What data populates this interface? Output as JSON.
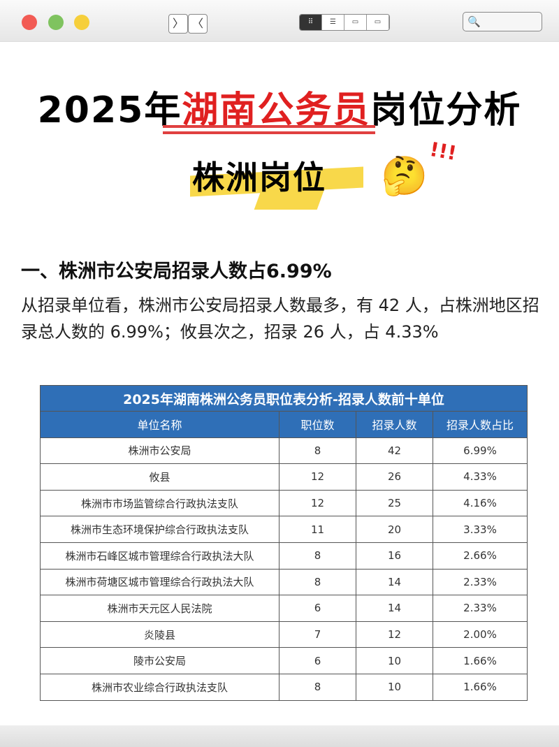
{
  "window": {
    "colors": {
      "close": "#f25b54",
      "minimize": "#7fc35f",
      "maximize": "#f6cf3b"
    },
    "nav_back": "〉",
    "nav_forward": "〈",
    "search_icon": "search-icon"
  },
  "header": {
    "title_pre": "2025年",
    "title_highlight": "湖南公务员",
    "title_post": "岗位分析",
    "subtitle": "株洲岗位",
    "emoji": "🤔",
    "exclaim": "!!!"
  },
  "section": {
    "heading": "一、株洲市公安局招录人数占6.99%",
    "paragraph": "从招录单位看，株洲市公安局招录人数最多，有 42 人，占株洲地区招录总人数的 6.99%；攸县次之，招录 26 人，占 4.33%"
  },
  "table": {
    "title": "2025年湖南株洲公务员职位表分析-招录人数前十单位",
    "headers": [
      "单位名称",
      "职位数",
      "招录人数",
      "招录人数占比"
    ],
    "rows": [
      [
        "株洲市公安局",
        "8",
        "42",
        "6.99%"
      ],
      [
        "攸县",
        "12",
        "26",
        "4.33%"
      ],
      [
        "株洲市市场监管综合行政执法支队",
        "12",
        "25",
        "4.16%"
      ],
      [
        "株洲市生态环境保护综合行政执法支队",
        "11",
        "20",
        "3.33%"
      ],
      [
        "株洲市石峰区城市管理综合行政执法大队",
        "8",
        "16",
        "2.66%"
      ],
      [
        "株洲市荷塘区城市管理综合行政执法大队",
        "8",
        "14",
        "2.33%"
      ],
      [
        "株洲市天元区人民法院",
        "6",
        "14",
        "2.33%"
      ],
      [
        "炎陵县",
        "7",
        "12",
        "2.00%"
      ],
      [
        "陵市公安局",
        "6",
        "10",
        "1.66%"
      ],
      [
        "株洲市农业综合行政执法支队",
        "8",
        "10",
        "1.66%"
      ]
    ]
  }
}
